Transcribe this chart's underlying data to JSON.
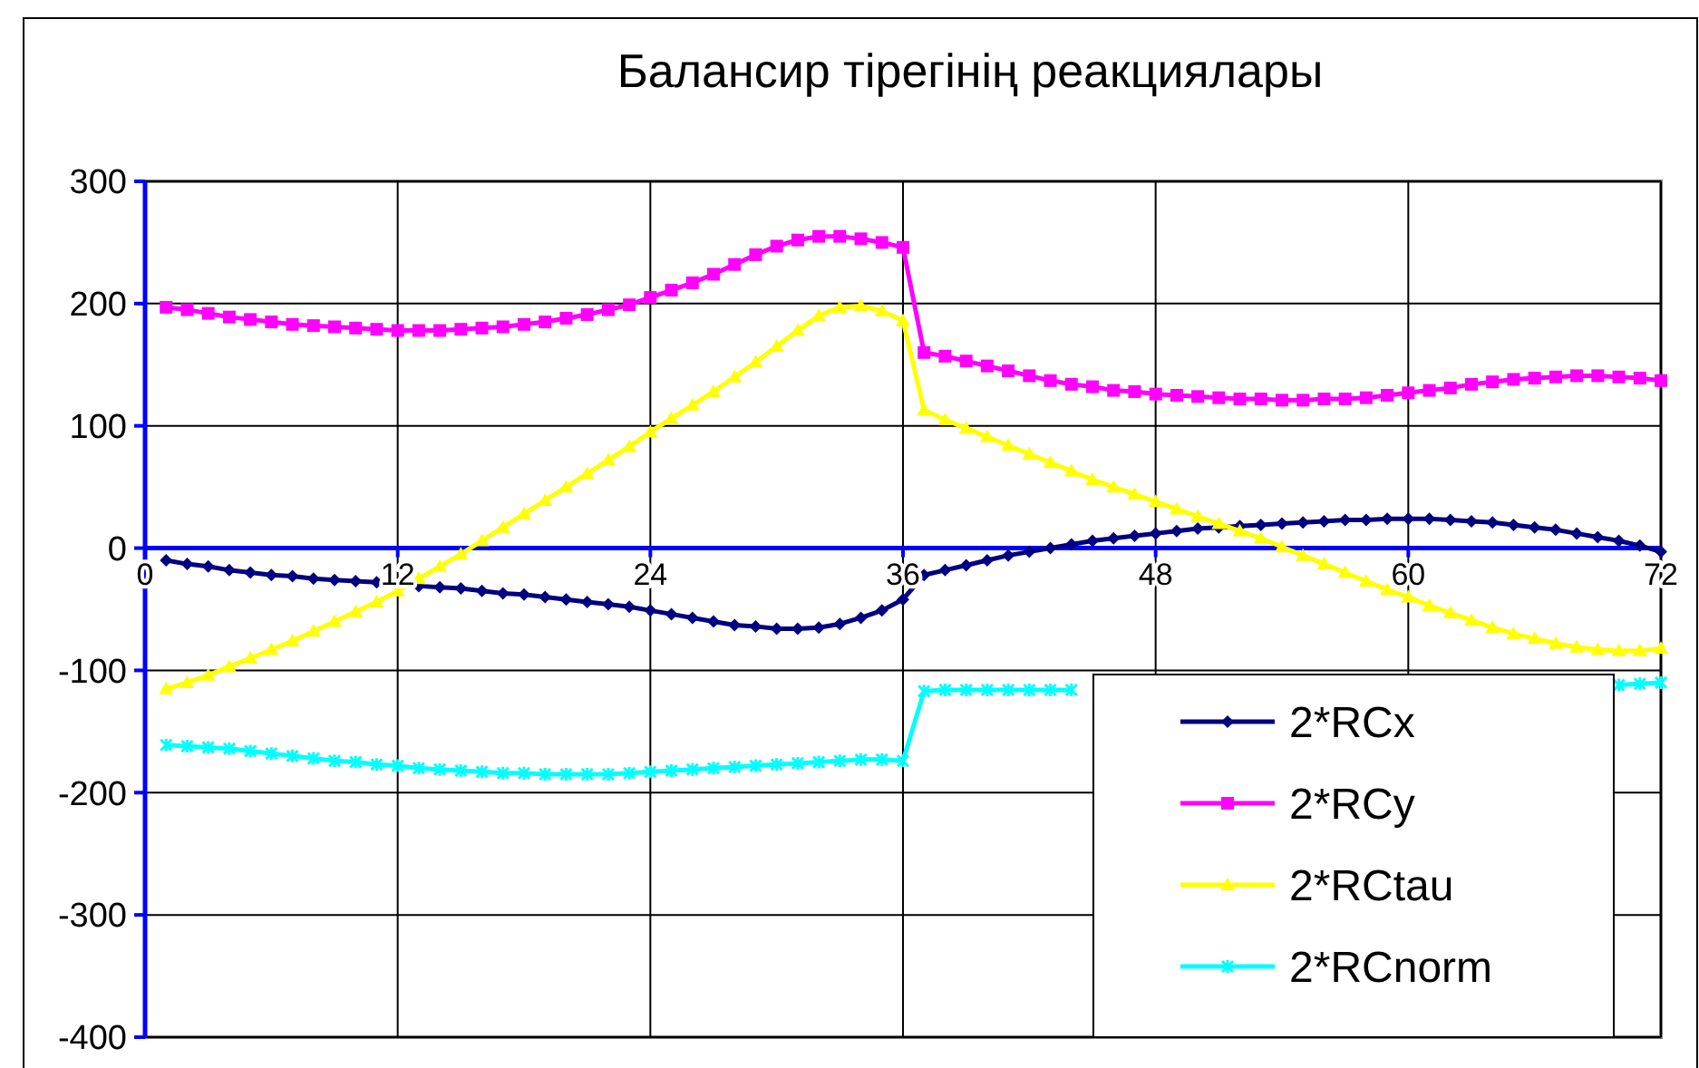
{
  "chart_data": {
    "type": "line",
    "title": "Балансир тірегінің реакциялары",
    "x": [
      1,
      2,
      3,
      4,
      5,
      6,
      7,
      8,
      9,
      10,
      11,
      12,
      13,
      14,
      15,
      16,
      17,
      18,
      19,
      20,
      21,
      22,
      23,
      24,
      25,
      26,
      27,
      28,
      29,
      30,
      31,
      32,
      33,
      34,
      35,
      36,
      37,
      38,
      39,
      40,
      41,
      42,
      43,
      44,
      45,
      46,
      47,
      48,
      49,
      50,
      51,
      52,
      53,
      54,
      55,
      56,
      57,
      58,
      59,
      60,
      61,
      62,
      63,
      64,
      65,
      66,
      67,
      68,
      69,
      70,
      71,
      72
    ],
    "xlim": [
      0,
      72
    ],
    "xticks": [
      0,
      12,
      24,
      36,
      48,
      60,
      72
    ],
    "ylim": [
      -400,
      300
    ],
    "yticks": [
      -400,
      -300,
      -200,
      -100,
      0,
      100,
      200,
      300
    ],
    "grid": true,
    "legend": "bottom right",
    "series": [
      {
        "name": "2*RCx",
        "color": "#000080",
        "marker": "diamond",
        "values": [
          -10,
          -13,
          -15,
          -18,
          -20,
          -22,
          -23,
          -25,
          -26,
          -27,
          -28,
          -30,
          -31,
          -32,
          -33,
          -35,
          -37,
          -38,
          -40,
          -42,
          -44,
          -46,
          -48,
          -51,
          -54,
          -57,
          -60,
          -63,
          -64,
          -66,
          -66,
          -65,
          -62,
          -57,
          -51,
          -42,
          -22,
          -18,
          -14,
          -10,
          -6,
          -3,
          0,
          3,
          6,
          8,
          10,
          12,
          14,
          16,
          17,
          18,
          19,
          20,
          21,
          22,
          23,
          23,
          24,
          24,
          24,
          23,
          22,
          21,
          19,
          17,
          15,
          12,
          9,
          6,
          2,
          -3
        ]
      },
      {
        "name": "2*RCy",
        "color": "#ff00ff",
        "marker": "square",
        "values": [
          197,
          195,
          192,
          189,
          187,
          185,
          183,
          182,
          181,
          180,
          179,
          178,
          178,
          178,
          179,
          180,
          181,
          183,
          185,
          188,
          191,
          195,
          199,
          205,
          211,
          217,
          224,
          232,
          240,
          247,
          252,
          255,
          255,
          253,
          250,
          246,
          160,
          157,
          153,
          149,
          145,
          141,
          137,
          134,
          132,
          129,
          128,
          126,
          125,
          124,
          123,
          122,
          122,
          121,
          121,
          122,
          122,
          123,
          125,
          127,
          129,
          131,
          134,
          136,
          138,
          139,
          140,
          141,
          141,
          140,
          139,
          137
        ]
      },
      {
        "name": "2*RCtau",
        "color": "#ffff00",
        "marker": "triangle",
        "values": [
          -115,
          -110,
          -104,
          -97,
          -90,
          -83,
          -76,
          -68,
          -60,
          -52,
          -44,
          -35,
          -25,
          -15,
          -5,
          6,
          17,
          28,
          39,
          50,
          61,
          72,
          83,
          95,
          106,
          117,
          128,
          140,
          152,
          165,
          178,
          190,
          197,
          198,
          194,
          186,
          113,
          105,
          98,
          91,
          84,
          77,
          70,
          63,
          56,
          50,
          44,
          38,
          32,
          26,
          20,
          14,
          8,
          1,
          -6,
          -13,
          -20,
          -27,
          -34,
          -40,
          -47,
          -53,
          -59,
          -65,
          -70,
          -74,
          -78,
          -81,
          -83,
          -84,
          -84,
          -82
        ]
      },
      {
        "name": "2*RCnorm",
        "color": "#00ffff",
        "marker": "cross",
        "values": [
          -161,
          -162,
          -163,
          -164,
          -166,
          -168,
          -170,
          -172,
          -174,
          -175,
          -177,
          -178,
          -180,
          -181,
          -182,
          -183,
          -184,
          -184,
          -185,
          -185,
          -185,
          -185,
          -184,
          -183,
          -182,
          -181,
          -180,
          -179,
          -178,
          -177,
          -176,
          -175,
          -174,
          -173,
          -173,
          -174,
          -117,
          -116,
          -116,
          -116,
          -116,
          -116,
          -116,
          -116,
          null,
          null,
          null,
          null,
          null,
          null,
          null,
          null,
          null,
          null,
          null,
          null,
          null,
          null,
          null,
          null,
          null,
          null,
          null,
          null,
          null,
          null,
          null,
          null,
          null,
          -112,
          -111,
          -110
        ]
      }
    ]
  }
}
